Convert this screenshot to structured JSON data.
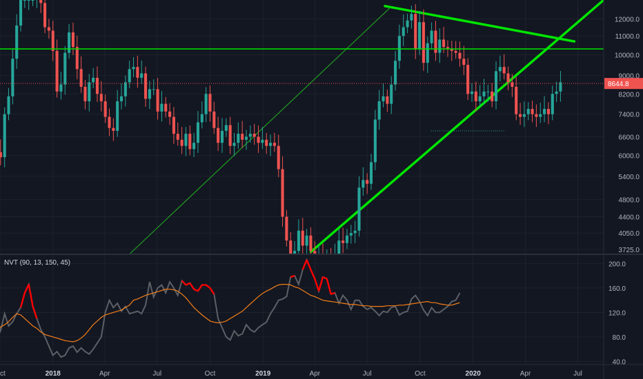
{
  "colors": {
    "background": "#131722",
    "grid": "#1e222d",
    "up": "#26a69a",
    "down": "#ef5350",
    "drawing_line": "#00e600",
    "channel_line": "#1f9e1f",
    "nvt_line": "#5d6066",
    "nvt_signal": "#ff0000",
    "nvt_ma": "#f57f17",
    "price_line": "#ef5350",
    "price_badge": "#ef5350"
  },
  "last_price": "8644.8",
  "indicator_label": "NVT (90, 13, 150, 45)",
  "chart_data": [
    {
      "type": "candlestick",
      "title": "",
      "xlabel": "",
      "ylabel": "",
      "scale": "log",
      "ylim": [
        3650,
        13200
      ],
      "xlim": [
        "2017-10-01",
        "2020-08-15"
      ],
      "grid": true,
      "x_ticks": [
        "Oct",
        "2018",
        "Apr",
        "Jul",
        "Oct",
        "2019",
        "Apr",
        "Jul",
        "Oct",
        "2020",
        "Apr",
        "Jul"
      ],
      "x_tick_dates": [
        "2017-10-01",
        "2018-01-01",
        "2018-04-01",
        "2018-07-01",
        "2018-10-01",
        "2019-01-01",
        "2019-04-01",
        "2019-07-01",
        "2019-10-01",
        "2020-01-01",
        "2020-04-01",
        "2020-07-01"
      ],
      "y_ticks": [
        12000,
        11000,
        10000,
        9000,
        8200,
        7400,
        6600,
        6000,
        5400,
        4800,
        4400,
        4050,
        3725
      ],
      "y_tick_labels": [
        "12000.0",
        "11000.0",
        "10000.0",
        "9000.0",
        "8200.0",
        "7400.0",
        "6600.0",
        "6000.0",
        "5400.0",
        "4800.0",
        "4400.0",
        "4050.0",
        "3725.0"
      ],
      "close": [
        4300,
        4600,
        5700,
        6100,
        5950,
        7400,
        8100,
        9800,
        11600,
        13200,
        13200,
        13200,
        13200,
        14200,
        13000,
        11500,
        11300,
        10200,
        8300,
        8600,
        10100,
        11200,
        10400,
        9300,
        8500,
        7900,
        8700,
        8900,
        8200,
        7900,
        7300,
        6900,
        6800,
        7900,
        8100,
        8700,
        9300,
        9400,
        8900,
        9100,
        8000,
        8400,
        8400,
        7500,
        7800,
        7500,
        7300,
        6700,
        6500,
        6300,
        6700,
        6200,
        6400,
        7100,
        7400,
        8200,
        7500,
        6900,
        6400,
        6800,
        7000,
        6300,
        6400,
        6700,
        6500,
        6600,
        6700,
        6600,
        6400,
        6500,
        6300,
        6400,
        6300,
        5600,
        4400,
        3900,
        3500,
        3700,
        4100,
        3800,
        4000,
        3700,
        3600,
        3600,
        3450,
        3600,
        3500,
        3650,
        3900,
        3850,
        4000,
        4050,
        4100,
        5100,
        5300,
        5200,
        5800,
        7200,
        7900,
        8100,
        7800,
        8600,
        9700,
        11000,
        11500,
        11900,
        12300,
        10300,
        11800,
        9600,
        10600,
        11300,
        10100,
        10800,
        10400,
        10300,
        10200,
        10100,
        9800,
        9500,
        8200,
        8300,
        7900,
        8100,
        8300,
        8300,
        7900,
        9200,
        9400,
        9100,
        8700,
        8500,
        7400,
        7300,
        7400,
        7600,
        7400,
        7300,
        7400,
        7600,
        7400,
        8200,
        8300,
        8700
      ],
      "open_source": "each candle opens at the previous candle's close; first open 4100",
      "reference_lines": [
        {
          "name": "resistance",
          "value": 10300
        },
        {
          "name": "last-price",
          "value": 8644.8
        },
        {
          "name": "recent-low",
          "value": 6800,
          "from": "2019-10-20",
          "to": "2020-02-25"
        }
      ],
      "trend_lines": [
        {
          "name": "rising-support",
          "from": [
            "2019-03-25",
            3680
          ],
          "to": [
            "2020-08-15",
            13200
          ],
          "width": "thick"
        },
        {
          "name": "falling-resistance",
          "from": [
            "2019-08-01",
            12800
          ],
          "to": [
            "2020-06-25",
            10700
          ],
          "width": "thick"
        },
        {
          "name": "channel",
          "from": [
            "2018-05-15",
            3650
          ],
          "to": [
            "2019-08-10",
            12700
          ],
          "width": "thin"
        }
      ]
    },
    {
      "type": "line",
      "title": "NVT (90, 13, 150, 45)",
      "ylim": [
        36,
        214
      ],
      "y_ticks": [
        200,
        160,
        120,
        80,
        40
      ],
      "y_tick_labels": [
        "200.0",
        "160.0",
        "120.0",
        "80.0",
        "40.0"
      ],
      "grid": true,
      "series": [
        {
          "name": "NVT",
          "values": [
            100,
            112,
            108,
            110,
            90,
            118,
            98,
            105,
            118,
            128,
            152,
            166,
            130,
            110,
            92,
            80,
            65,
            50,
            56,
            47,
            50,
            62,
            65,
            55,
            62,
            56,
            52,
            60,
            70,
            80,
            120,
            140,
            128,
            135,
            122,
            130,
            118,
            120,
            122,
            118,
            132,
            170,
            145,
            160,
            165,
            152,
            170,
            160,
            148,
            172,
            165,
            168,
            158,
            155,
            165,
            165,
            160,
            150,
            110,
            95,
            80,
            75,
            90,
            82,
            85,
            100,
            92,
            88,
            95,
            100,
            104,
            118,
            128,
            140,
            142,
            146,
            178,
            180,
            166,
            190,
            206,
            190,
            175,
            155,
            178,
            175,
            150,
            152,
            135,
            148,
            140,
            125,
            140,
            140,
            130,
            125,
            128,
            122,
            115,
            122,
            120,
            128,
            130,
            116,
            120,
            122,
            142,
            148,
            138,
            124,
            115,
            128,
            120,
            120,
            125,
            130,
            138,
            140,
            152
          ],
          "signal_color_above_ma": "#ff0000"
        },
        {
          "name": "MA",
          "values": [
            85,
            88,
            90,
            93,
            96,
            100,
            105,
            112,
            118,
            116,
            110,
            104,
            98,
            94,
            88,
            84,
            82,
            80,
            78,
            76,
            74,
            73,
            72,
            74,
            78,
            84,
            92,
            100,
            106,
            112,
            116,
            118,
            120,
            122,
            124,
            128,
            132,
            140,
            142,
            145,
            148,
            150,
            152,
            154,
            156,
            158,
            158,
            157,
            155,
            150,
            144,
            136,
            128,
            122,
            116,
            111,
            106,
            104,
            103,
            104,
            106,
            110,
            114,
            118,
            122,
            128,
            134,
            140,
            146,
            151,
            155,
            158,
            162,
            165,
            166,
            166,
            165,
            162,
            160,
            156,
            152,
            148,
            146,
            143,
            140,
            139,
            138,
            137,
            136,
            135,
            134,
            133,
            133,
            132,
            131,
            131,
            130,
            130,
            130,
            130,
            131,
            131,
            131,
            132,
            132,
            133,
            134,
            135,
            136,
            137,
            138,
            136,
            136,
            134,
            133,
            132,
            132,
            134,
            136
          ]
        }
      ]
    }
  ]
}
